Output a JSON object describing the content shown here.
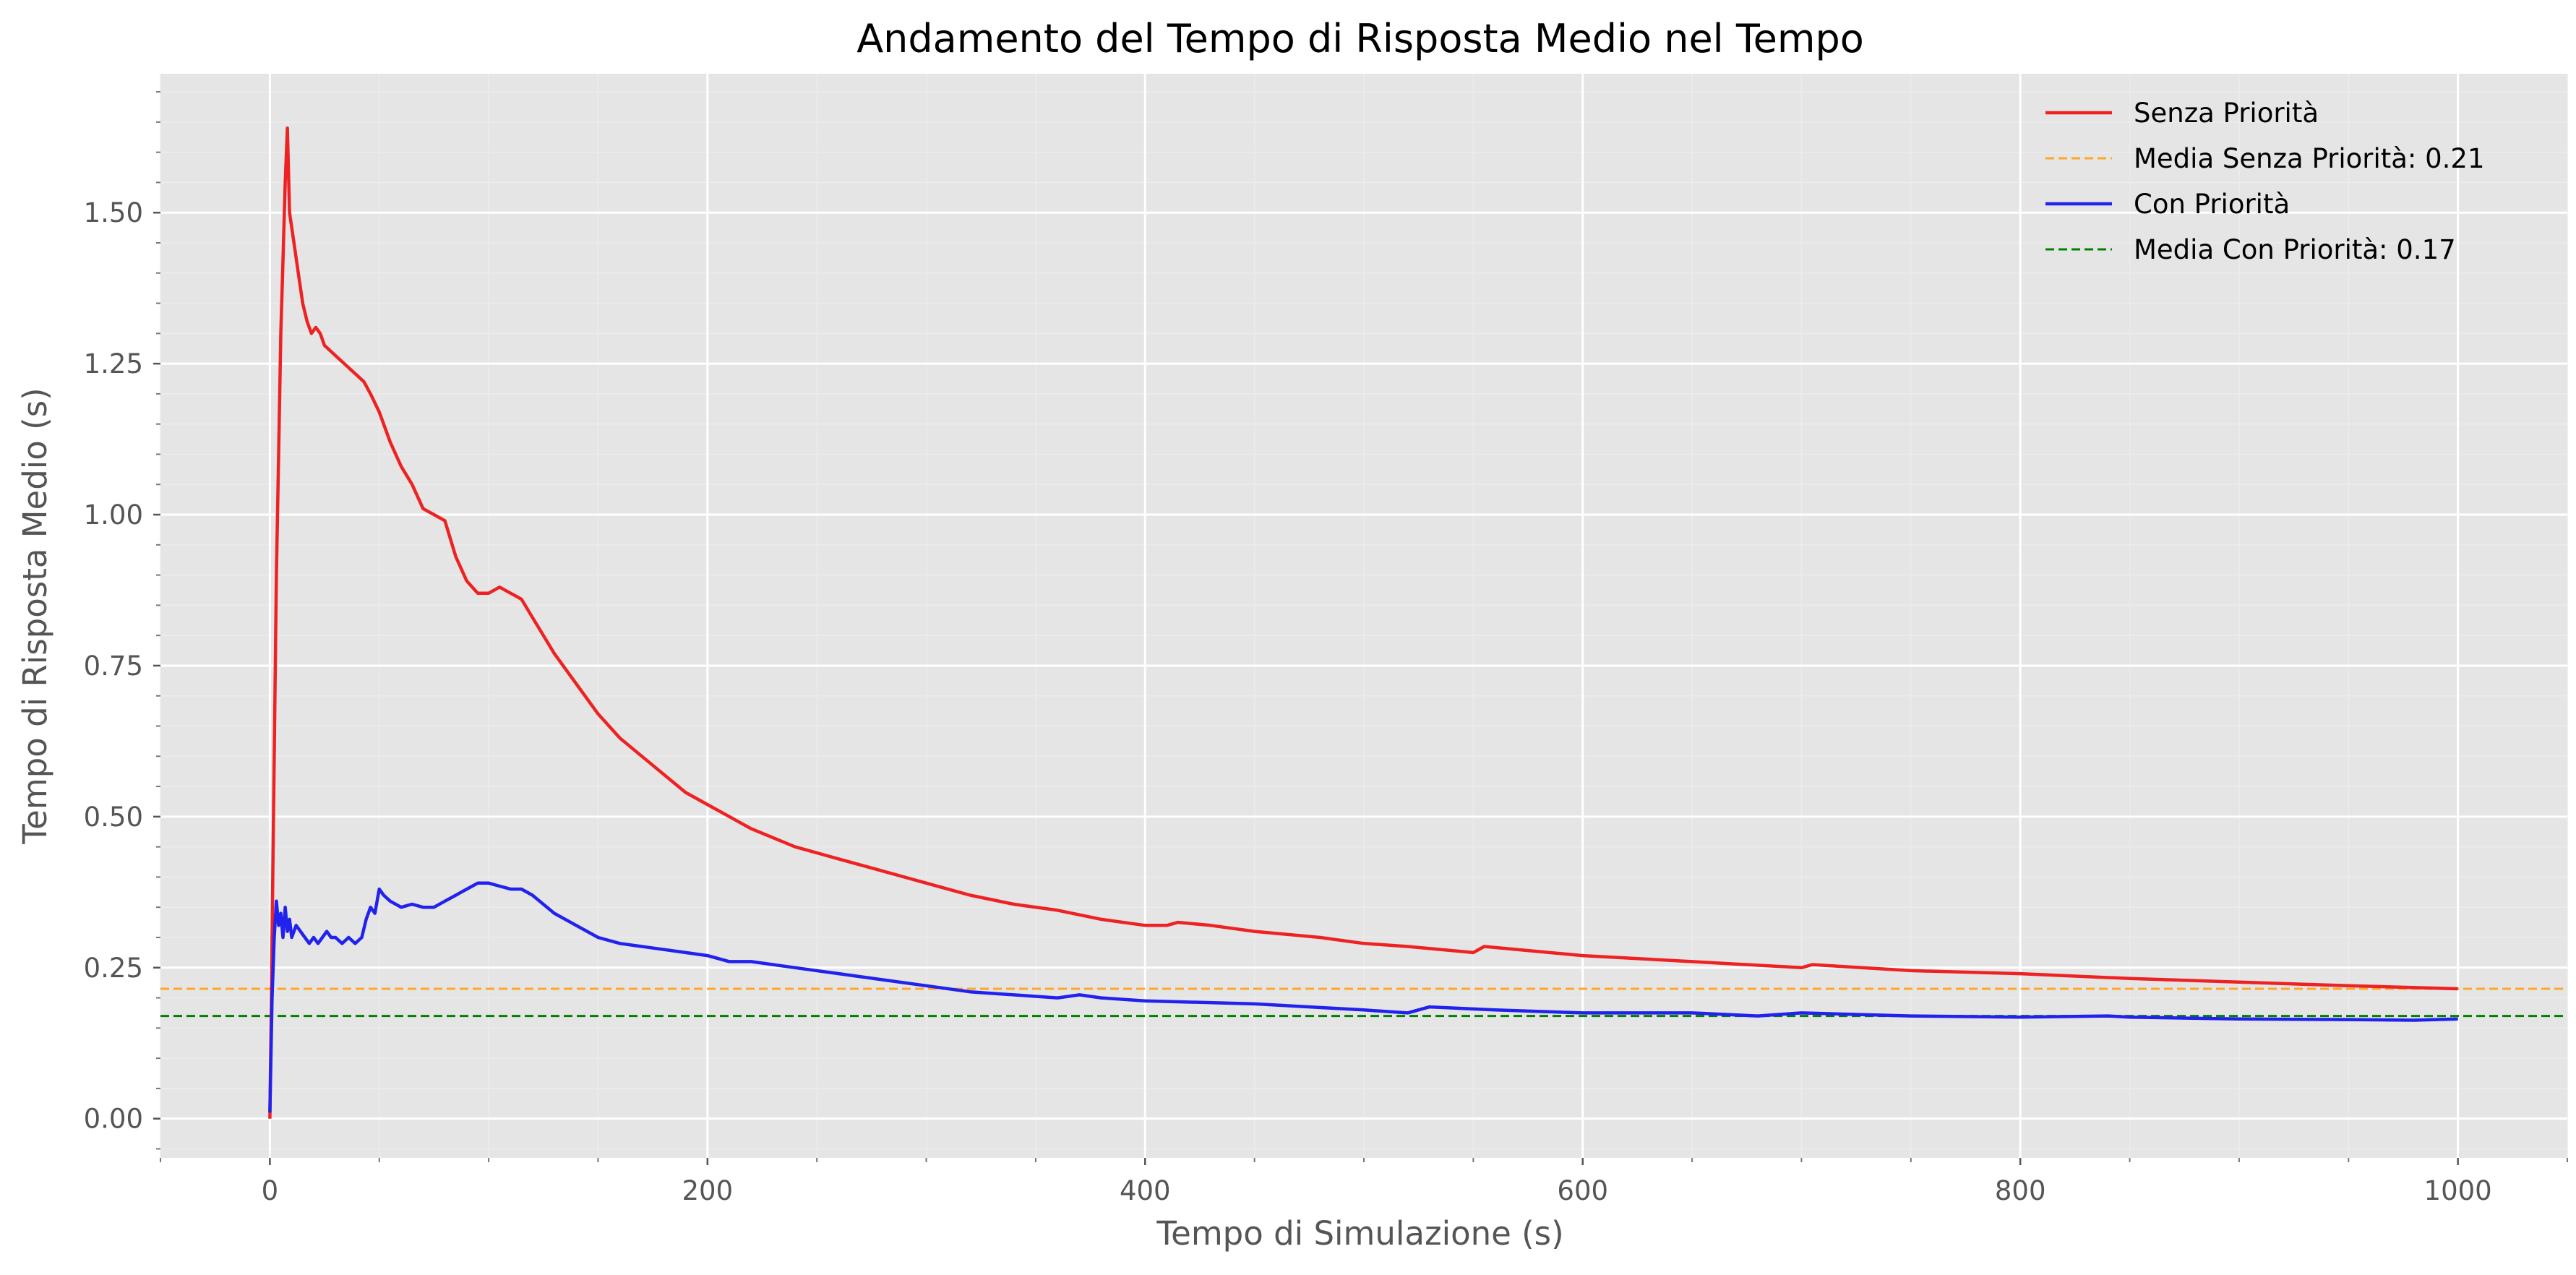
{
  "chart_data": {
    "type": "line",
    "title": "Andamento del Tempo di Risposta Medio nel Tempo",
    "xlabel": "Tempo di Simulazione (s)",
    "ylabel": "Tempo di Risposta Medio (s)",
    "xlim": [
      -50,
      1050
    ],
    "ylim": [
      -0.065,
      1.73
    ],
    "x_ticks": [
      0,
      200,
      400,
      600,
      800,
      1000
    ],
    "x_tick_labels": [
      "0",
      "200",
      "400",
      "600",
      "800",
      "1000"
    ],
    "y_ticks": [
      0.0,
      0.25,
      0.5,
      0.75,
      1.0,
      1.25,
      1.5
    ],
    "y_tick_labels": [
      "0.00",
      "0.25",
      "0.50",
      "0.75",
      "1.00",
      "1.25",
      "1.50"
    ],
    "grid": true,
    "legend_position": "top-right",
    "series": [
      {
        "name": "Senza Priorità",
        "color": "#ee2222",
        "style": "solid",
        "points": [
          [
            0,
            0.0
          ],
          [
            1,
            0.3
          ],
          [
            2,
            0.6
          ],
          [
            3,
            0.9
          ],
          [
            4,
            1.1
          ],
          [
            5,
            1.3
          ],
          [
            6,
            1.42
          ],
          [
            7,
            1.55
          ],
          [
            8,
            1.64
          ],
          [
            9,
            1.5
          ],
          [
            11,
            1.45
          ],
          [
            13,
            1.4
          ],
          [
            15,
            1.35
          ],
          [
            17,
            1.32
          ],
          [
            19,
            1.3
          ],
          [
            21,
            1.31
          ],
          [
            23,
            1.3
          ],
          [
            25,
            1.28
          ],
          [
            28,
            1.27
          ],
          [
            31,
            1.26
          ],
          [
            34,
            1.25
          ],
          [
            37,
            1.24
          ],
          [
            40,
            1.23
          ],
          [
            43,
            1.22
          ],
          [
            46,
            1.2
          ],
          [
            50,
            1.17
          ],
          [
            55,
            1.12
          ],
          [
            60,
            1.08
          ],
          [
            65,
            1.05
          ],
          [
            70,
            1.01
          ],
          [
            75,
            1.0
          ],
          [
            80,
            0.99
          ],
          [
            85,
            0.93
          ],
          [
            90,
            0.89
          ],
          [
            95,
            0.87
          ],
          [
            100,
            0.87
          ],
          [
            105,
            0.88
          ],
          [
            110,
            0.87
          ],
          [
            115,
            0.86
          ],
          [
            120,
            0.83
          ],
          [
            130,
            0.77
          ],
          [
            140,
            0.72
          ],
          [
            150,
            0.67
          ],
          [
            160,
            0.63
          ],
          [
            170,
            0.6
          ],
          [
            180,
            0.57
          ],
          [
            190,
            0.54
          ],
          [
            200,
            0.52
          ],
          [
            220,
            0.48
          ],
          [
            240,
            0.45
          ],
          [
            260,
            0.43
          ],
          [
            280,
            0.41
          ],
          [
            300,
            0.39
          ],
          [
            320,
            0.37
          ],
          [
            340,
            0.355
          ],
          [
            360,
            0.345
          ],
          [
            380,
            0.33
          ],
          [
            400,
            0.32
          ],
          [
            410,
            0.32
          ],
          [
            415,
            0.325
          ],
          [
            430,
            0.32
          ],
          [
            450,
            0.31
          ],
          [
            480,
            0.3
          ],
          [
            500,
            0.29
          ],
          [
            520,
            0.285
          ],
          [
            550,
            0.275
          ],
          [
            555,
            0.285
          ],
          [
            600,
            0.27
          ],
          [
            650,
            0.26
          ],
          [
            700,
            0.25
          ],
          [
            705,
            0.255
          ],
          [
            750,
            0.245
          ],
          [
            800,
            0.24
          ],
          [
            850,
            0.232
          ],
          [
            900,
            0.226
          ],
          [
            950,
            0.22
          ],
          [
            1000,
            0.215
          ]
        ]
      },
      {
        "name": "Media Senza Priorità: 0.21",
        "color": "#ffa726",
        "style": "dashed",
        "value": 0.215
      },
      {
        "name": "Con Priorità",
        "color": "#2222ee",
        "style": "solid",
        "points": [
          [
            0,
            0.01
          ],
          [
            1,
            0.2
          ],
          [
            2,
            0.3
          ],
          [
            3,
            0.36
          ],
          [
            4,
            0.32
          ],
          [
            5,
            0.34
          ],
          [
            6,
            0.3
          ],
          [
            7,
            0.35
          ],
          [
            8,
            0.31
          ],
          [
            9,
            0.33
          ],
          [
            10,
            0.3
          ],
          [
            12,
            0.32
          ],
          [
            14,
            0.31
          ],
          [
            16,
            0.3
          ],
          [
            18,
            0.29
          ],
          [
            20,
            0.3
          ],
          [
            22,
            0.29
          ],
          [
            24,
            0.3
          ],
          [
            26,
            0.31
          ],
          [
            28,
            0.3
          ],
          [
            30,
            0.3
          ],
          [
            33,
            0.29
          ],
          [
            36,
            0.3
          ],
          [
            39,
            0.29
          ],
          [
            42,
            0.3
          ],
          [
            44,
            0.33
          ],
          [
            46,
            0.35
          ],
          [
            48,
            0.34
          ],
          [
            50,
            0.38
          ],
          [
            52,
            0.37
          ],
          [
            55,
            0.36
          ],
          [
            60,
            0.35
          ],
          [
            65,
            0.355
          ],
          [
            70,
            0.35
          ],
          [
            75,
            0.35
          ],
          [
            80,
            0.36
          ],
          [
            85,
            0.37
          ],
          [
            90,
            0.38
          ],
          [
            95,
            0.39
          ],
          [
            100,
            0.39
          ],
          [
            105,
            0.385
          ],
          [
            110,
            0.38
          ],
          [
            115,
            0.38
          ],
          [
            120,
            0.37
          ],
          [
            130,
            0.34
          ],
          [
            140,
            0.32
          ],
          [
            150,
            0.3
          ],
          [
            160,
            0.29
          ],
          [
            170,
            0.285
          ],
          [
            180,
            0.28
          ],
          [
            190,
            0.275
          ],
          [
            200,
            0.27
          ],
          [
            210,
            0.26
          ],
          [
            220,
            0.26
          ],
          [
            240,
            0.25
          ],
          [
            260,
            0.24
          ],
          [
            280,
            0.23
          ],
          [
            300,
            0.22
          ],
          [
            320,
            0.21
          ],
          [
            340,
            0.205
          ],
          [
            360,
            0.2
          ],
          [
            370,
            0.205
          ],
          [
            380,
            0.2
          ],
          [
            400,
            0.195
          ],
          [
            450,
            0.19
          ],
          [
            500,
            0.18
          ],
          [
            520,
            0.175
          ],
          [
            530,
            0.185
          ],
          [
            560,
            0.18
          ],
          [
            600,
            0.175
          ],
          [
            650,
            0.175
          ],
          [
            680,
            0.17
          ],
          [
            700,
            0.175
          ],
          [
            750,
            0.17
          ],
          [
            800,
            0.168
          ],
          [
            840,
            0.17
          ],
          [
            850,
            0.168
          ],
          [
            900,
            0.165
          ],
          [
            950,
            0.164
          ],
          [
            980,
            0.163
          ],
          [
            1000,
            0.165
          ]
        ]
      },
      {
        "name": "Media Con Priorità: 0.17",
        "color": "#008000",
        "style": "dashed",
        "value": 0.17
      }
    ]
  }
}
